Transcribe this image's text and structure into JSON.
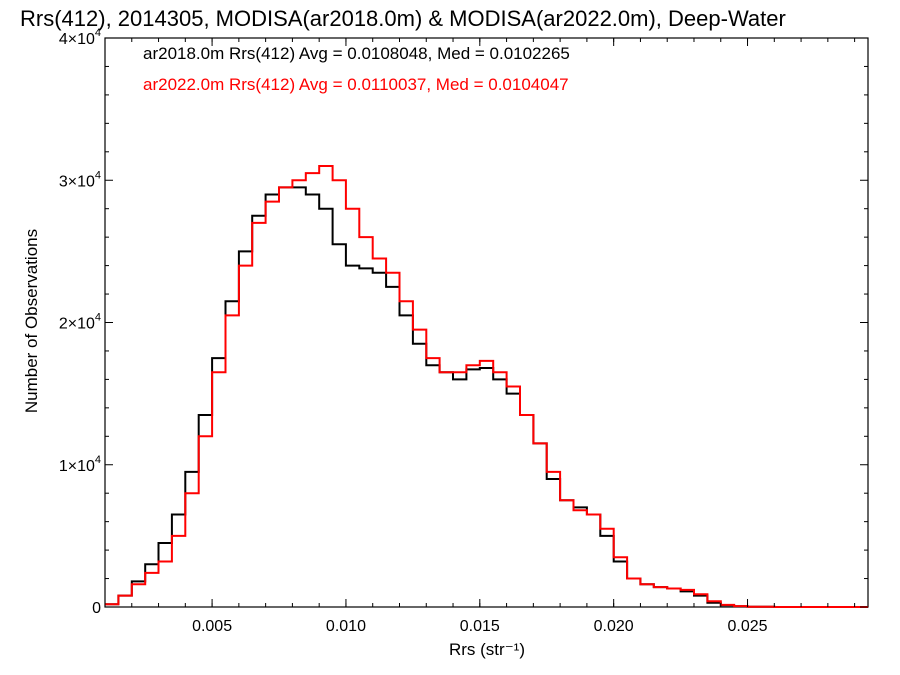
{
  "chart_data": {
    "type": "line",
    "title": "Rrs(412), 2014305, MODISA(ar2018.0m) & MODISA(ar2022.0m), Deep-Water",
    "xlabel": "Rrs (str⁻¹)",
    "ylabel": "Number of Observations",
    "xlim": [
      0.001,
      0.0295
    ],
    "ylim": [
      0,
      40000
    ],
    "x_ticks": [
      0.005,
      0.01,
      0.015,
      0.02,
      0.025
    ],
    "x_tick_labels": [
      "0.005",
      "0.010",
      "0.015",
      "0.020",
      "0.025"
    ],
    "y_ticks": [
      0,
      10000,
      20000,
      30000,
      40000
    ],
    "y_tick_labels": [
      "0",
      "1×10",
      "2×10",
      "3×10",
      "4×10"
    ],
    "y_tick_exponent": "4",
    "grid": false,
    "legend_position": "top-left",
    "legend": [
      "ar2018.0m Rrs(412) Avg = 0.0108048, Med = 0.0102265",
      "ar2022.0m Rrs(412) Avg = 0.0110037, Med = 0.0104047"
    ],
    "series": [
      {
        "color": "#000000",
        "x": [
          0.001,
          0.0015,
          0.002,
          0.0025,
          0.003,
          0.0035,
          0.004,
          0.0045,
          0.005,
          0.0055,
          0.006,
          0.0065,
          0.007,
          0.0075,
          0.008,
          0.0085,
          0.009,
          0.0095,
          0.01,
          0.0105,
          0.011,
          0.0115,
          0.012,
          0.0125,
          0.013,
          0.0135,
          0.014,
          0.0145,
          0.015,
          0.0155,
          0.016,
          0.0165,
          0.017,
          0.0175,
          0.018,
          0.0185,
          0.019,
          0.0195,
          0.02,
          0.0205,
          0.021,
          0.0215,
          0.022,
          0.0225,
          0.023,
          0.0235,
          0.024,
          0.0245,
          0.025,
          0.026,
          0.027,
          0.028,
          0.029,
          0.0295
        ],
        "y": [
          200,
          800,
          1800,
          3000,
          4500,
          6500,
          9500,
          13500,
          17500,
          21500,
          25000,
          27500,
          29000,
          29500,
          29500,
          29000,
          28000,
          25500,
          24000,
          23800,
          23500,
          22500,
          20500,
          18500,
          17000,
          16500,
          16000,
          16700,
          16800,
          16000,
          15000,
          13500,
          11500,
          9000,
          7500,
          7000,
          6500,
          5000,
          3200,
          2000,
          1600,
          1400,
          1300,
          1100,
          800,
          300,
          120,
          50,
          20,
          0,
          0,
          0,
          0,
          0
        ]
      },
      {
        "color": "#ff0000",
        "x": [
          0.001,
          0.0015,
          0.002,
          0.0025,
          0.003,
          0.0035,
          0.004,
          0.0045,
          0.005,
          0.0055,
          0.006,
          0.0065,
          0.007,
          0.0075,
          0.008,
          0.0085,
          0.009,
          0.0095,
          0.01,
          0.0105,
          0.011,
          0.0115,
          0.012,
          0.0125,
          0.013,
          0.0135,
          0.014,
          0.0145,
          0.015,
          0.0155,
          0.016,
          0.0165,
          0.017,
          0.0175,
          0.018,
          0.0185,
          0.019,
          0.0195,
          0.02,
          0.0205,
          0.021,
          0.0215,
          0.022,
          0.0225,
          0.023,
          0.0235,
          0.024,
          0.0245,
          0.025,
          0.026,
          0.027,
          0.028,
          0.029,
          0.0295
        ],
        "y": [
          200,
          800,
          1600,
          2400,
          3200,
          5000,
          8000,
          12000,
          16500,
          20500,
          24000,
          27000,
          28500,
          29500,
          30000,
          30500,
          31000,
          30000,
          28000,
          26000,
          24500,
          23500,
          21500,
          19500,
          17500,
          16500,
          16500,
          17000,
          17300,
          16500,
          15500,
          13500,
          11500,
          9500,
          7500,
          6800,
          6500,
          5500,
          3500,
          2000,
          1600,
          1400,
          1300,
          1200,
          900,
          400,
          150,
          60,
          20,
          0,
          0,
          0,
          0,
          0
        ]
      }
    ]
  }
}
